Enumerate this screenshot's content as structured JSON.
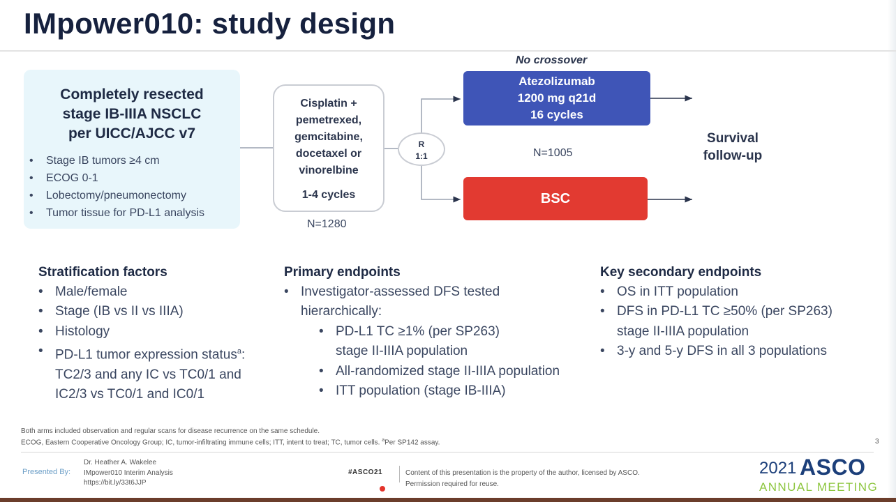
{
  "slide": {
    "title": "IMpower010: study design",
    "page_number": "3"
  },
  "inclusion": {
    "heading_line1": "Completely resected",
    "heading_line2": "stage IB-IIIA NSCLC",
    "heading_line3": "per UICC/AJCC v7",
    "criteria": [
      "Stage IB tumors ≥4 cm",
      "ECOG 0-1",
      "Lobectomy/pneumonectomy",
      "Tumor tissue for PD-L1 analysis"
    ]
  },
  "chemo": {
    "line1": "Cisplatin +",
    "line2": "pemetrexed,",
    "line3": "gemcitabine,",
    "line4": "docetaxel or",
    "line5": "vinorelbine",
    "cycles": "1-4 cycles",
    "n": "N=1280"
  },
  "randomization": {
    "r": "R",
    "ratio": "1:1",
    "n": "N=1005"
  },
  "arms": {
    "no_crossover": "No crossover",
    "atezo_line1": "Atezolizumab",
    "atezo_line2": "1200 mg q21d",
    "atezo_line3": "16 cycles",
    "bsc": "BSC",
    "colors": {
      "atezo": "#3f55b7",
      "bsc": "#e23a31"
    }
  },
  "survival": {
    "line1": "Survival",
    "line2": "follow-up"
  },
  "stratification": {
    "heading": "Stratification factors",
    "items": [
      "Male/female",
      "Stage (IB vs II vs IIIA)",
      "Histology"
    ],
    "pdl1_line1": "PD-L1 tumor expression status",
    "pdl1_sup": "a",
    "pdl1_line1_tail": ":",
    "pdl1_line2": "TC2/3 and any IC vs TC0/1 and",
    "pdl1_line3": "IC2/3 vs TC0/1 and IC0/1"
  },
  "primary": {
    "heading": "Primary endpoints",
    "item_line1": "Investigator-assessed DFS tested",
    "item_line2": "hierarchically:",
    "sub1_line1": "PD-L1 TC ≥1% (per SP263)",
    "sub1_line2": "stage II-IIIA population",
    "sub2": "All-randomized stage II-IIIA population",
    "sub3": "ITT population (stage IB-IIIA)"
  },
  "secondary": {
    "heading": "Key secondary endpoints",
    "item1": "OS in ITT population",
    "item2_line1": "DFS in PD-L1 TC ≥50% (per SP263)",
    "item2_line2": "stage II-IIIA population",
    "item3": "3-y and 5-y DFS in all 3 populations"
  },
  "footnotes": {
    "line1": "Both arms included observation and regular scans for disease recurrence on the same schedule.",
    "line2": "ECOG, Eastern Cooperative Oncology Group; IC, tumor-infiltrating immune cells; ITT, intent to treat; TC, tumor cells. ",
    "line2_sup": "a",
    "line2_tail": "Per SP142 assay."
  },
  "footer": {
    "presented_by": "Presented By:",
    "presenter_name": "Dr. Heather A. Wakelee",
    "presenter_talk": "IMpower010 Interim Analysis",
    "presenter_link": "https://bit.ly/33t6JJP",
    "hashtag": "#ASCO21",
    "copyright_line1": "Content of this presentation is the property of the author, licensed by ASCO.",
    "copyright_line2": "Permission required for reuse.",
    "logo_year": "2021",
    "logo_name": "ASCO",
    "logo_meeting": "ANNUAL MEETING"
  }
}
